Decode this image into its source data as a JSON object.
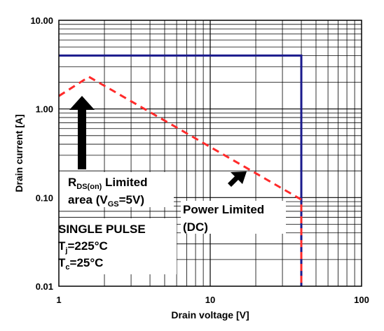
{
  "chart_data": {
    "type": "line",
    "xlabel": "Drain voltage [V]",
    "ylabel": "Drain current [A]",
    "xscale": "log",
    "yscale": "log",
    "xlim": [
      1,
      100
    ],
    "ylim": [
      0.01,
      10
    ],
    "grid": true,
    "x_ticks": [
      {
        "value": 1,
        "label": "1"
      },
      {
        "value": 10,
        "label": "10"
      },
      {
        "value": 100,
        "label": "100"
      }
    ],
    "y_ticks": [
      {
        "value": 0.01,
        "label": "0.01"
      },
      {
        "value": 0.1,
        "label": "0.10"
      },
      {
        "value": 1,
        "label": "1.00"
      },
      {
        "value": 10,
        "label": "10.00"
      }
    ],
    "series": [
      {
        "style": "solid",
        "color": "#1a1a8c",
        "points": [
          [
            1,
            4.0
          ],
          [
            40,
            4.0
          ],
          [
            40,
            0.01
          ]
        ]
      },
      {
        "style": "dashed",
        "color": "#ff2a2a",
        "points": [
          [
            1,
            1.4
          ],
          [
            1.58,
            2.3
          ],
          [
            40,
            0.095
          ],
          [
            40,
            0.01
          ]
        ]
      }
    ],
    "annotations": {
      "rds": {
        "line1_main": "R",
        "line1_sub": "DS(on)",
        "line1_rest": " Limited",
        "line2_pre": "area (V",
        "line2_sub": "GS",
        "line2_post": "=5V)"
      },
      "power": {
        "line1": "Power Limited",
        "line2": "(DC)"
      },
      "conditions": {
        "line1": "SINGLE PULSE",
        "tj_main": "T",
        "tj_sub": "j",
        "tj_rest": "=225°C",
        "tc_main": "T",
        "tc_sub": "c",
        "tc_rest": "=25°C"
      }
    }
  }
}
